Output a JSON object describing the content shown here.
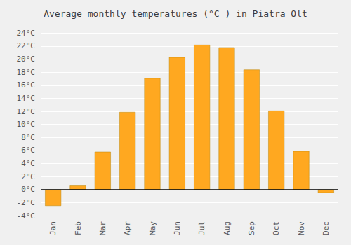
{
  "chart_data": {
    "type": "bar",
    "title": "Average monthly temperatures (°C ) in Piatra Olt",
    "categories": [
      "Jan",
      "Feb",
      "Mar",
      "Apr",
      "May",
      "Jun",
      "Jul",
      "Aug",
      "Sep",
      "Oct",
      "Nov",
      "Dec"
    ],
    "values": [
      -2.5,
      0.7,
      5.8,
      11.9,
      17.1,
      20.3,
      22.2,
      21.8,
      18.4,
      12.1,
      5.9,
      -0.5
    ],
    "color": "#FFA820",
    "ylim": [
      -4,
      25
    ],
    "yticks": [
      {
        "value": -4,
        "label": "-4°C"
      },
      {
        "value": -2,
        "label": "-2°C"
      },
      {
        "value": 0,
        "label": "0°C"
      },
      {
        "value": 2,
        "label": "2°C"
      },
      {
        "value": 4,
        "label": "4°C"
      },
      {
        "value": 6,
        "label": "6°C"
      },
      {
        "value": 8,
        "label": "8°C"
      },
      {
        "value": 10,
        "label": "10°C"
      },
      {
        "value": 12,
        "label": "12°C"
      },
      {
        "value": 14,
        "label": "14°C"
      },
      {
        "value": 16,
        "label": "16°C"
      },
      {
        "value": 18,
        "label": "18°C"
      },
      {
        "value": 20,
        "label": "20°C"
      },
      {
        "value": 22,
        "label": "22°C"
      },
      {
        "value": 24,
        "label": "24°C"
      }
    ],
    "grid": true
  }
}
